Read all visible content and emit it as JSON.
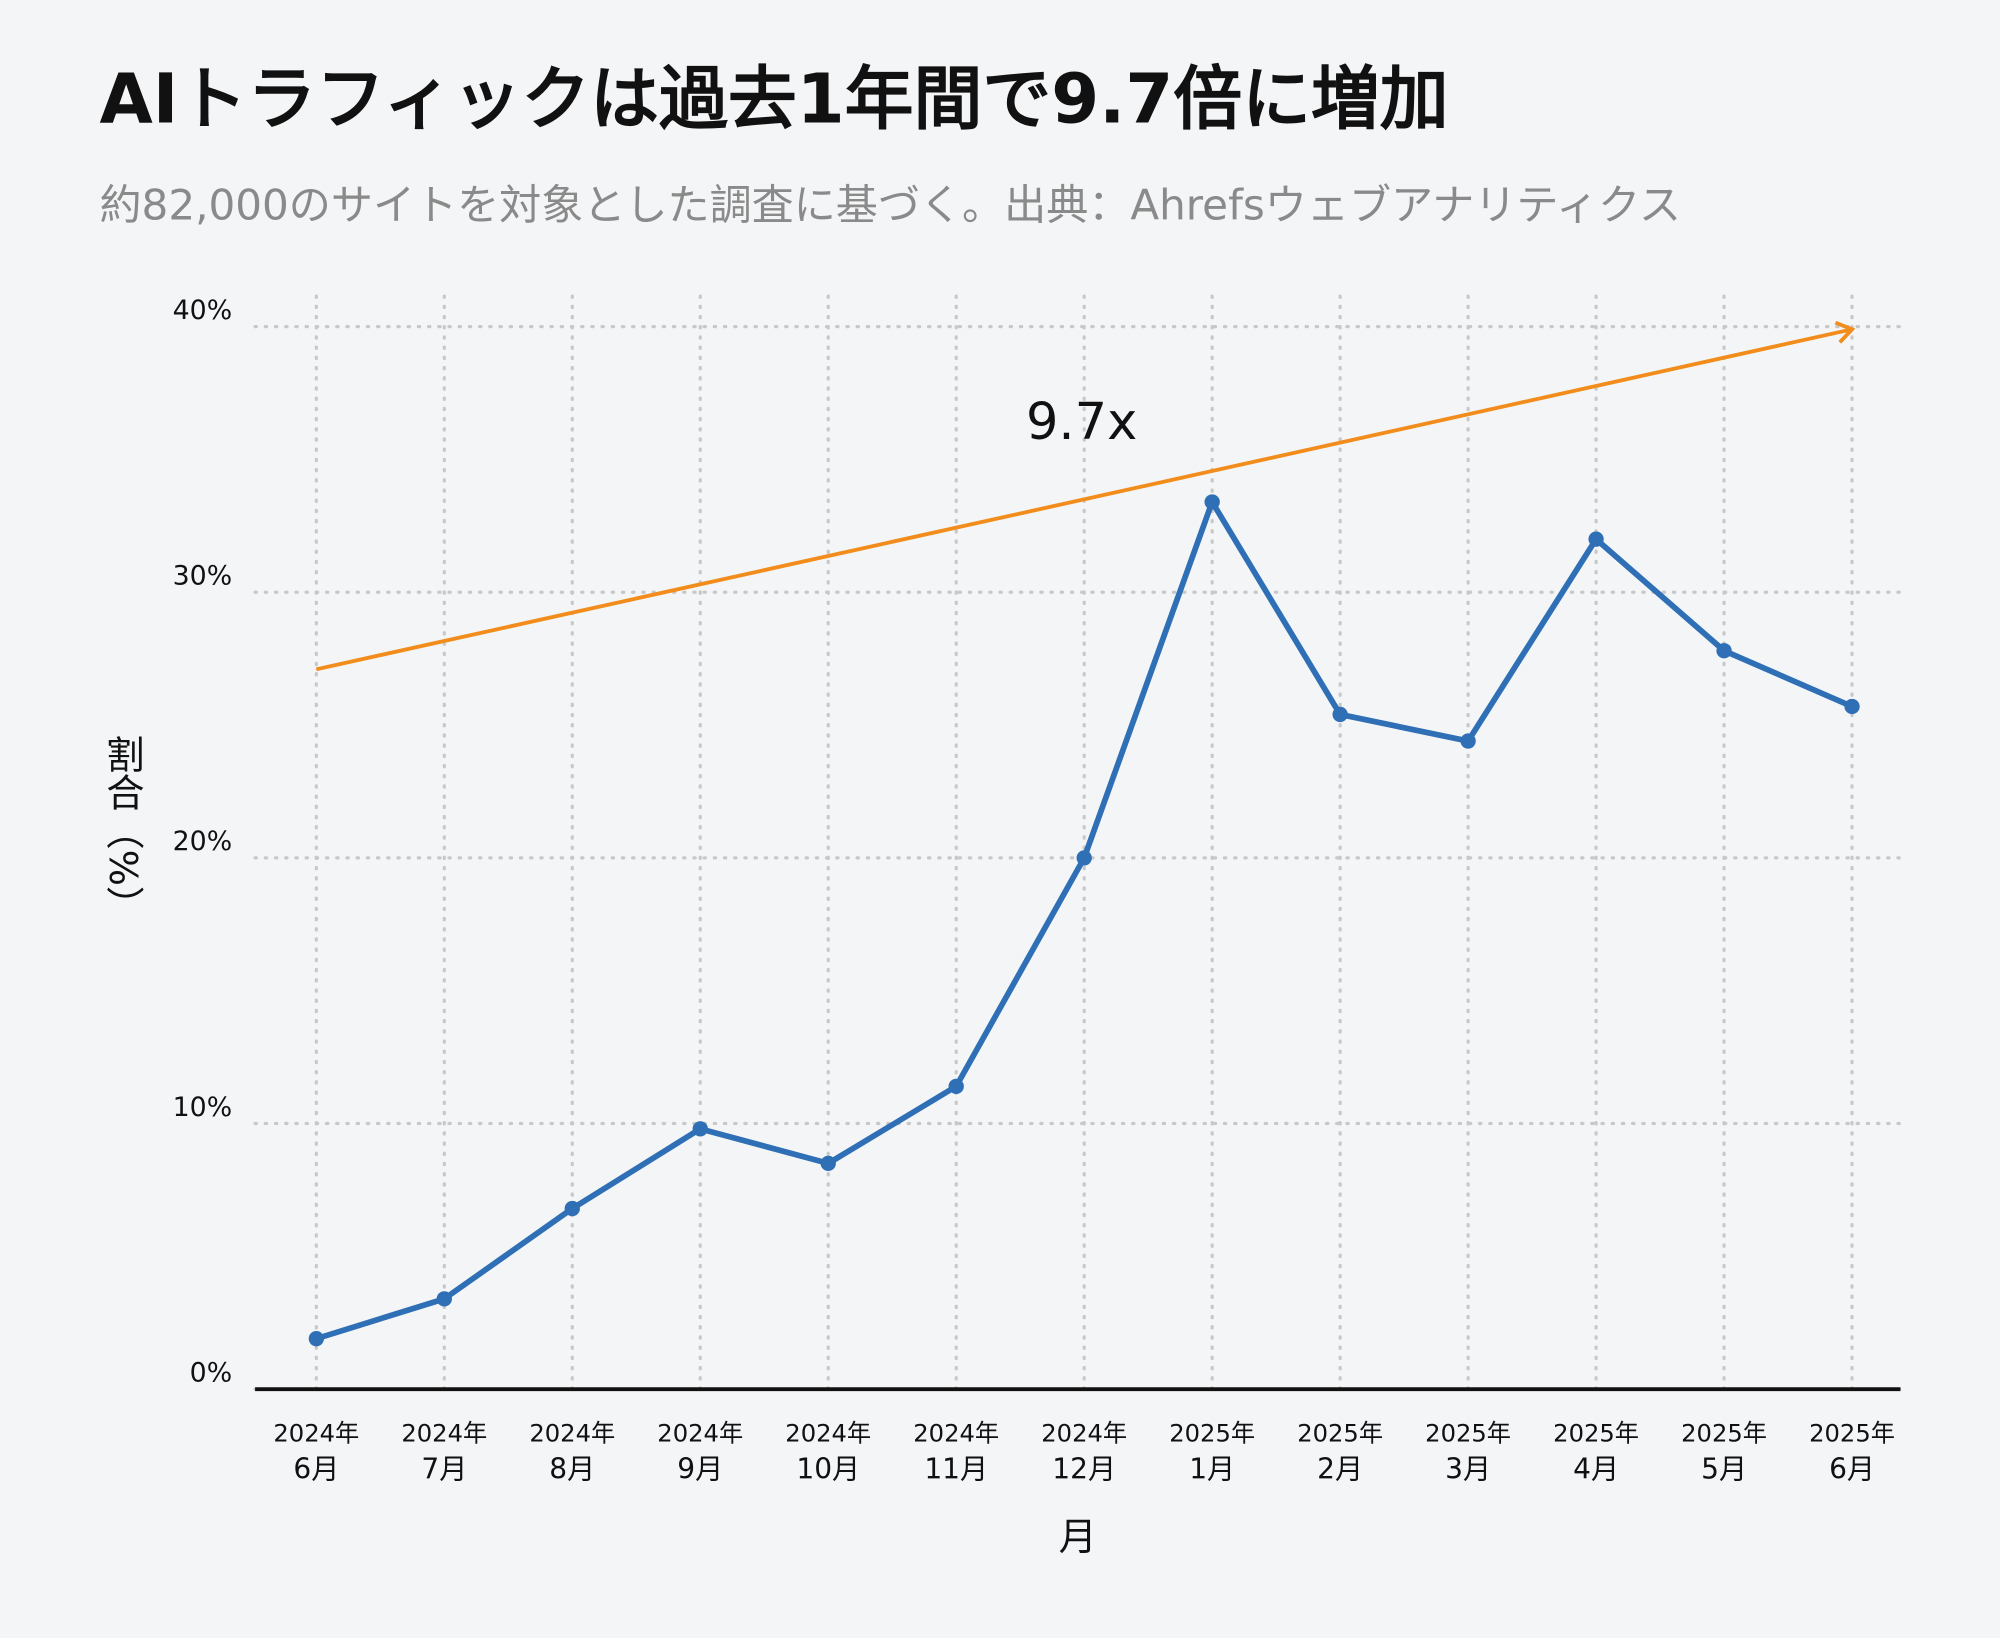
{
  "chart_data": {
    "type": "line",
    "title": "AIトラフィックは過去1年間で9.7倍に増加",
    "subtitle": "約82,000のサイトを対象とした調査に基づく。出典：Ahrefsウェブアナリティクス",
    "xlabel": "月",
    "ylabel": "割合（%）",
    "categories": [
      [
        "2024年",
        "6月"
      ],
      [
        "2024年",
        "7月"
      ],
      [
        "2024年",
        "8月"
      ],
      [
        "2024年",
        "9月"
      ],
      [
        "2024年",
        "10月"
      ],
      [
        "2024年",
        "11月"
      ],
      [
        "2024年",
        "12月"
      ],
      [
        "2025年",
        "1月"
      ],
      [
        "2025年",
        "2月"
      ],
      [
        "2025年",
        "3月"
      ],
      [
        "2025年",
        "4月"
      ],
      [
        "2025年",
        "5月"
      ],
      [
        "2025年",
        "6月"
      ]
    ],
    "series": [
      {
        "color": "#2e6fb5",
        "values": [
          1.9,
          3.4,
          6.8,
          9.8,
          8.5,
          11.4,
          20.0,
          33.4,
          25.4,
          24.4,
          32.0,
          27.8,
          25.7
        ]
      }
    ],
    "trend": {
      "color": "#f28c1b",
      "start": 27.1,
      "end": 39.9,
      "label": "9.7x"
    },
    "ylim": [
      0,
      40
    ],
    "yticks": [
      {
        "value": 0,
        "label": "0%"
      },
      {
        "value": 10,
        "label": "10%"
      },
      {
        "value": 20,
        "label": "20%"
      },
      {
        "value": 30,
        "label": "30%"
      },
      {
        "value": 40,
        "label": "40%"
      }
    ],
    "grid": true
  }
}
